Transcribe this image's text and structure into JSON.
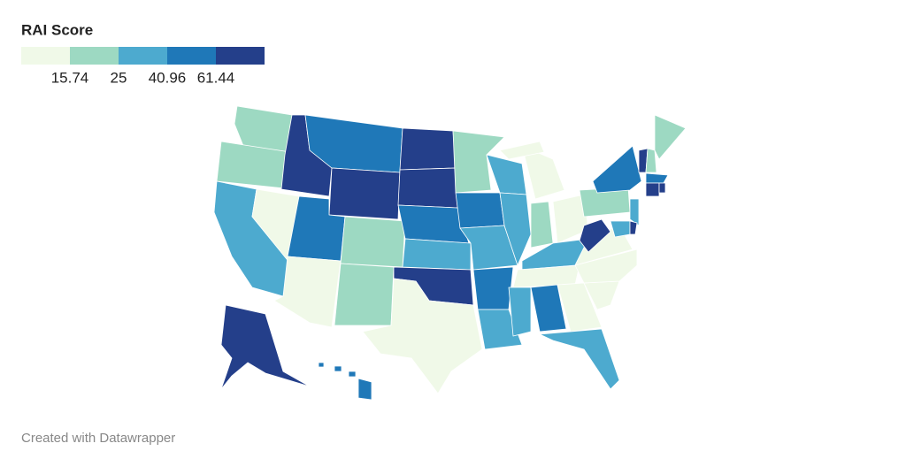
{
  "legend": {
    "title": "RAI Score",
    "colors": [
      "#f0f9e8",
      "#9dd9c2",
      "#4daacf",
      "#1f78b8",
      "#243f8a"
    ],
    "thresholds": [
      15.74,
      25,
      40.96,
      61.44
    ]
  },
  "footer": "Created with Datawrapper"
}
